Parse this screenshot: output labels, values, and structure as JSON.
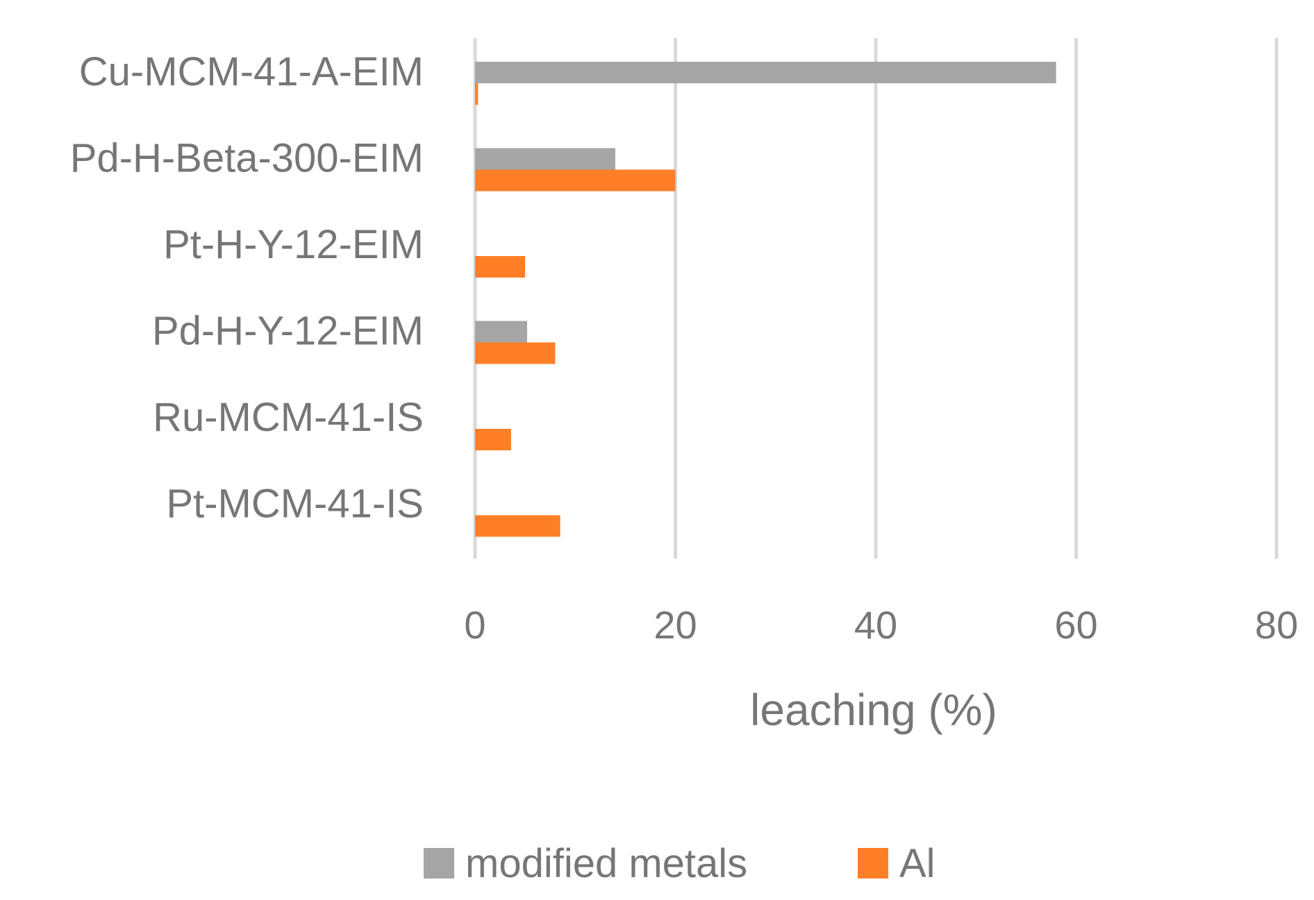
{
  "chart_data": {
    "type": "bar",
    "orientation": "horizontal",
    "categories": [
      "Cu-MCM-41-A-EIM",
      "Pd-H-Beta-300-EIM",
      "Pt-H-Y-12-EIM",
      "Pd-H-Y-12-EIM",
      "Ru-MCM-41-IS",
      "Pt-MCM-41-IS"
    ],
    "series": [
      {
        "name": "modified metals",
        "color": "#a5a5a5",
        "values": [
          58,
          14,
          0,
          5.2,
          0,
          0
        ]
      },
      {
        "name": "Al",
        "color": "#ff7f27",
        "values": [
          0.3,
          20,
          5,
          8,
          3.6,
          8.5
        ]
      }
    ],
    "xlim": [
      0,
      80
    ],
    "xticks": [
      "0",
      "20",
      "40",
      "60",
      "80"
    ],
    "xlabel": "leaching (%)",
    "ylabel": "",
    "title": "",
    "grid": "vertical",
    "legend": "bottom"
  }
}
